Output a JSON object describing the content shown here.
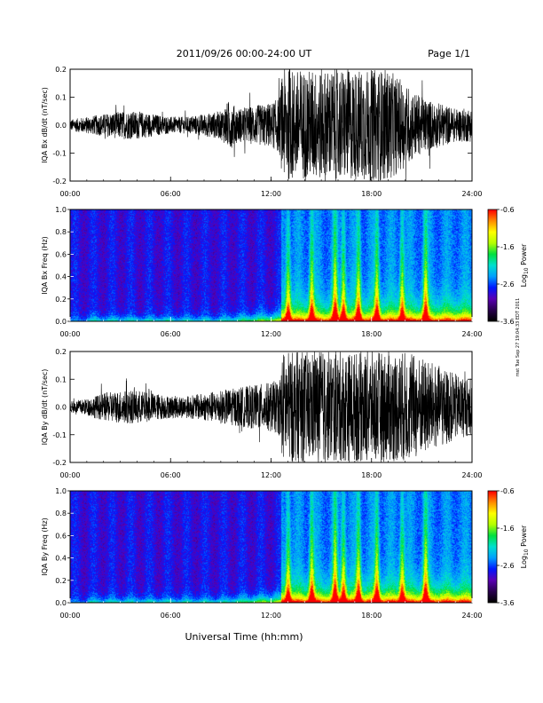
{
  "header": {
    "title": "2011/09/26  00:00-24:00 UT",
    "page": "Page 1/1"
  },
  "footer": {
    "xlabel": "Universal Time (hh:mm)",
    "side_note": "mst Tue Sep 27 19:04:33 EDT 2011"
  },
  "chart_data": [
    {
      "type": "line",
      "id": "bx_dbdt",
      "ylabel": "IQA Bx dB/dt (nT/sec)",
      "xlabel": "",
      "xlim": [
        0,
        24
      ],
      "ylim": [
        -0.2,
        0.2
      ],
      "xticks": [
        "00:00",
        "06:00",
        "12:00",
        "18:00",
        "24:00"
      ],
      "yticks": [
        "-0.2",
        "-0.1",
        "0.0",
        "0.1",
        "0.2"
      ],
      "series": [
        {
          "color": "#000000",
          "envelope_x_hours": [
            0,
            1,
            2,
            3,
            4,
            5,
            6,
            7,
            8,
            9,
            9.5,
            10,
            11,
            12,
            12.5,
            12.7,
            13,
            14,
            15,
            16,
            17,
            18,
            19,
            20,
            21,
            22,
            23,
            24
          ],
          "envelope_amplitude": [
            0.02,
            0.03,
            0.04,
            0.05,
            0.05,
            0.04,
            0.03,
            0.03,
            0.04,
            0.05,
            0.09,
            0.06,
            0.07,
            0.08,
            0.1,
            0.2,
            0.2,
            0.2,
            0.2,
            0.2,
            0.2,
            0.2,
            0.2,
            0.15,
            0.1,
            0.08,
            0.06,
            0.06
          ]
        }
      ]
    },
    {
      "type": "heatmap",
      "id": "bx_spectrogram",
      "ylabel": "IQA Bx Freq (Hz)",
      "xlim": [
        0,
        24
      ],
      "ylim": [
        0,
        1.0
      ],
      "xticks": [
        "00:00",
        "06:00",
        "12:00",
        "18:00",
        "24:00"
      ],
      "yticks": [
        "0.0",
        "0.2",
        "0.4",
        "0.6",
        "0.8",
        "1.0"
      ],
      "colorbar": {
        "label": "Log10 Power",
        "label_base": "Log",
        "label_sub": "10",
        "label_rest": " Power",
        "range": [
          -3.6,
          -0.6
        ],
        "ticks": [
          "-0.6",
          "-1.6",
          "-2.6",
          "-3.6"
        ],
        "colormap": [
          "#000000",
          "#2a0050",
          "#5a00b4",
          "#0018ff",
          "#00a0ff",
          "#00e0d0",
          "#00e040",
          "#b4ff00",
          "#ffff00",
          "#ff8c00",
          "#ff0000"
        ]
      },
      "active_bands_hours": [
        13,
        14.4,
        15.8,
        16.3,
        17.2,
        18.3,
        19.8,
        21.2
      ],
      "onset_hour": 12.6
    },
    {
      "type": "line",
      "id": "by_dbdt",
      "ylabel": "IQA By dB/dt (nT/sec)",
      "xlabel": "",
      "xlim": [
        0,
        24
      ],
      "ylim": [
        -0.2,
        0.2
      ],
      "xticks": [
        "00:00",
        "06:00",
        "12:00",
        "18:00",
        "24:00"
      ],
      "yticks": [
        "-0.2",
        "-0.1",
        "0.0",
        "0.1",
        "0.2"
      ],
      "series": [
        {
          "color": "#000000",
          "envelope_x_hours": [
            0,
            1,
            2,
            3,
            4,
            5,
            6,
            7,
            8,
            9,
            10,
            11,
            12,
            12.5,
            12.7,
            13,
            14,
            15,
            16,
            17,
            18,
            19,
            20,
            21,
            22,
            23,
            24
          ],
          "envelope_amplitude": [
            0.02,
            0.03,
            0.05,
            0.06,
            0.06,
            0.05,
            0.04,
            0.04,
            0.05,
            0.06,
            0.07,
            0.08,
            0.09,
            0.1,
            0.2,
            0.2,
            0.2,
            0.2,
            0.2,
            0.2,
            0.2,
            0.2,
            0.2,
            0.18,
            0.15,
            0.12,
            0.1
          ]
        }
      ]
    },
    {
      "type": "heatmap",
      "id": "by_spectrogram",
      "ylabel": "IQA By Freq (Hz)",
      "xlim": [
        0,
        24
      ],
      "ylim": [
        0,
        1.0
      ],
      "xticks": [
        "00:00",
        "06:00",
        "12:00",
        "18:00",
        "24:00"
      ],
      "yticks": [
        "0.0",
        "0.2",
        "0.4",
        "0.6",
        "0.8",
        "1.0"
      ],
      "colorbar": {
        "label": "Log10 Power",
        "label_base": "Log",
        "label_sub": "10",
        "label_rest": " Power",
        "range": [
          -3.6,
          -0.6
        ],
        "ticks": [
          "-0.6",
          "-1.6",
          "-2.6",
          "-3.6"
        ],
        "colormap": [
          "#000000",
          "#2a0050",
          "#5a00b4",
          "#0018ff",
          "#00a0ff",
          "#00e0d0",
          "#00e040",
          "#b4ff00",
          "#ffff00",
          "#ff8c00",
          "#ff0000"
        ]
      },
      "active_bands_hours": [
        13,
        14.4,
        15.8,
        16.3,
        17.2,
        18.3,
        19.8,
        21.2
      ],
      "onset_hour": 12.6
    }
  ]
}
